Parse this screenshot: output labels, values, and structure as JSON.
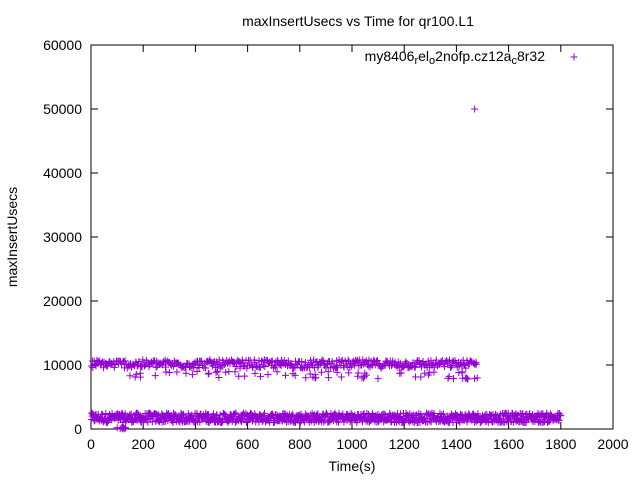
{
  "chart_data": {
    "type": "scatter",
    "title": "maxInsertUsecs vs Time for qr100.L1",
    "xlabel": "Time(s)",
    "ylabel": "maxInsertUsecs",
    "xlim": [
      0,
      2000
    ],
    "ylim": [
      0,
      60000
    ],
    "xticks": [
      "0",
      "200",
      "400",
      "600",
      "800",
      "1000",
      "1200",
      "1400",
      "1600",
      "1800",
      "2000"
    ],
    "yticks": [
      "0",
      "10000",
      "20000",
      "30000",
      "40000",
      "50000",
      "60000"
    ],
    "grid": false,
    "legend_position": "top-right",
    "marker": "+",
    "series": [
      {
        "name_parts": [
          {
            "text": "my8406",
            "sub": false
          },
          {
            "text": "r",
            "sub": true
          },
          {
            "text": "el",
            "sub": false
          },
          {
            "text": "o",
            "sub": true
          },
          {
            "text": "2nofp.cz12a",
            "sub": false
          },
          {
            "text": "c",
            "sub": true
          },
          {
            "text": "8r32",
            "sub": false
          }
        ],
        "color": "#9400d3",
        "bands": [
          {
            "x_start": 0,
            "x_end": 1800,
            "y_min": 1000,
            "y_max": 2500,
            "description": "dense band ~1000-2500 usecs"
          },
          {
            "x_start": 0,
            "x_end": 1480,
            "y_min": 9500,
            "y_max": 10800,
            "description": "band ~10000 usecs"
          },
          {
            "x_start": 140,
            "x_end": 1480,
            "y_min": 7800,
            "y_max": 9000,
            "description": "sparse points ~8000-9000 usecs"
          },
          {
            "x_start": 90,
            "x_end": 140,
            "y_min": 0,
            "y_max": 300,
            "description": "points near 0"
          }
        ],
        "outliers": [
          {
            "x": 1470,
            "y": 50000
          }
        ]
      }
    ]
  }
}
